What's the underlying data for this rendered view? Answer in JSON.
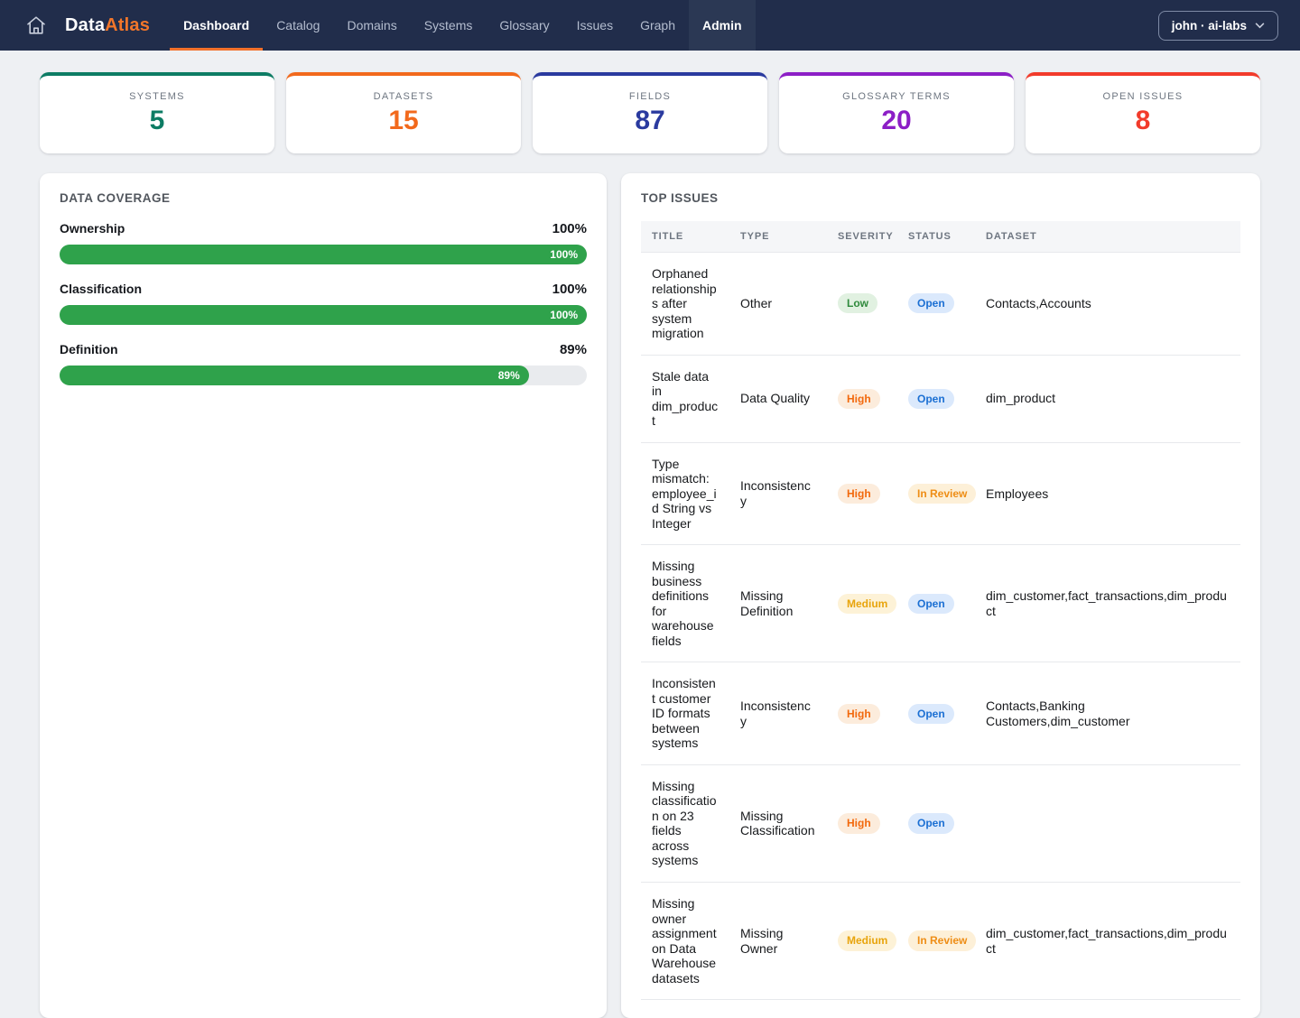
{
  "nav": {
    "logo": {
      "part1": "Data",
      "part2": "Atlas"
    },
    "items": [
      {
        "label": "Dashboard",
        "active": true
      },
      {
        "label": "Catalog"
      },
      {
        "label": "Domains"
      },
      {
        "label": "Systems"
      },
      {
        "label": "Glossary"
      },
      {
        "label": "Issues"
      },
      {
        "label": "Graph"
      },
      {
        "label": "Admin",
        "highlighted": true
      }
    ],
    "user_label": "john · ai-labs"
  },
  "colors": {
    "accent_orange": "#f2702a",
    "navbar_bg": "#212d4b",
    "progress_green": "#2fa24b"
  },
  "stats": {
    "cards": [
      {
        "id": "systems",
        "label": "SYSTEMS",
        "value": "5",
        "color": "#0d7c64"
      },
      {
        "id": "datasets",
        "label": "DATASETS",
        "value": "15",
        "color": "#f2691c"
      },
      {
        "id": "fields",
        "label": "FIELDS",
        "value": "87",
        "color": "#2a3a9f"
      },
      {
        "id": "glossary-terms",
        "label": "GLOSSARY TERMS",
        "value": "20",
        "color": "#8c1ec6"
      },
      {
        "id": "open-issues",
        "label": "OPEN ISSUES",
        "value": "8",
        "color": "#f23b2b"
      }
    ]
  },
  "coverage": {
    "title": "DATA COVERAGE",
    "metrics": [
      {
        "label": "Ownership",
        "percent": 100,
        "display": "100%"
      },
      {
        "label": "Classification",
        "percent": 100,
        "display": "100%"
      },
      {
        "label": "Definition",
        "percent": 89,
        "display": "89%"
      }
    ]
  },
  "issues": {
    "title": "TOP ISSUES",
    "columns": [
      "TITLE",
      "TYPE",
      "SEVERITY",
      "STATUS",
      "DATASET"
    ],
    "rows": [
      {
        "title": "Orphaned relationships after system migration",
        "type": "Other",
        "severity": "Low",
        "severity_level": "low",
        "status": "Open",
        "status_state": "open",
        "dataset": "Contacts,Accounts"
      },
      {
        "title": "Stale data in dim_product",
        "type": "Data Quality",
        "severity": "High",
        "severity_level": "high",
        "status": "Open",
        "status_state": "open",
        "dataset": "dim_product"
      },
      {
        "title": "Type mismatch: employee_id String vs Integer",
        "type": "Inconsistency",
        "severity": "High",
        "severity_level": "high",
        "status": "In Review",
        "status_state": "in-review",
        "dataset": "Employees"
      },
      {
        "title": "Missing business definitions for warehouse fields",
        "type": "Missing Definition",
        "severity": "Medium",
        "severity_level": "medium",
        "status": "Open",
        "status_state": "open",
        "dataset": "dim_customer,fact_transactions,dim_product"
      },
      {
        "title": "Inconsistent customer ID formats between systems",
        "type": "Inconsistency",
        "severity": "High",
        "severity_level": "high",
        "status": "Open",
        "status_state": "open",
        "dataset": "Contacts,Banking Customers,dim_customer"
      },
      {
        "title": "Missing classification on 23 fields across systems",
        "type": "Missing Classification",
        "severity": "High",
        "severity_level": "high",
        "status": "Open",
        "status_state": "open",
        "dataset": ""
      },
      {
        "title": "Missing owner assignment on Data Warehouse datasets",
        "type": "Missing Owner",
        "severity": "Medium",
        "severity_level": "medium",
        "status": "In Review",
        "status_state": "in-review",
        "dataset": "dim_customer,fact_transactions,dim_product"
      }
    ]
  }
}
